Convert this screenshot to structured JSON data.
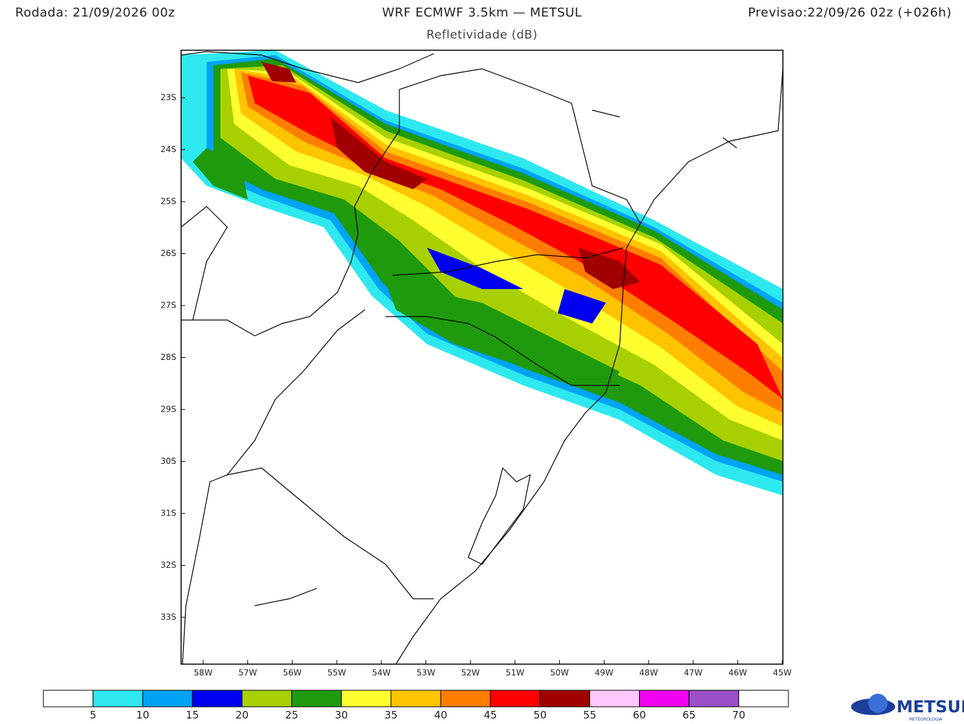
{
  "header": {
    "run": "Rodada: 21/09/2026 00z",
    "title": "WRF ECMWF 3.5km — METSUL",
    "subtitle": "Refletividade (dB)",
    "forecast": "Previsao:22/09/26 02z (+026h)"
  },
  "map": {
    "lat_labels": [
      "23S",
      "24S",
      "25S",
      "26S",
      "27S",
      "28S",
      "29S",
      "30S",
      "31S",
      "32S",
      "33S"
    ],
    "lon_labels": [
      "58W",
      "57W",
      "56W",
      "55W",
      "54W",
      "53W",
      "52W",
      "51W",
      "50W",
      "49W",
      "48W",
      "47W",
      "46W",
      "45W"
    ]
  },
  "colorbar": {
    "boundaries": [
      5,
      10,
      15,
      20,
      25,
      30,
      35,
      40,
      45,
      50,
      55,
      60,
      65,
      70
    ],
    "colors": [
      "#ffffff",
      "#2ee8ef",
      "#00a3f5",
      "#0000f0",
      "#a8d000",
      "#1e9a0c",
      "#ffff30",
      "#ffc400",
      "#ff7d00",
      "#ff0000",
      "#a00000",
      "#ffc8fa",
      "#f000f0",
      "#9a50c8",
      "#ffffff"
    ]
  },
  "logo": {
    "name": "METSUL",
    "tagline": "METEOROLOGIA"
  }
}
